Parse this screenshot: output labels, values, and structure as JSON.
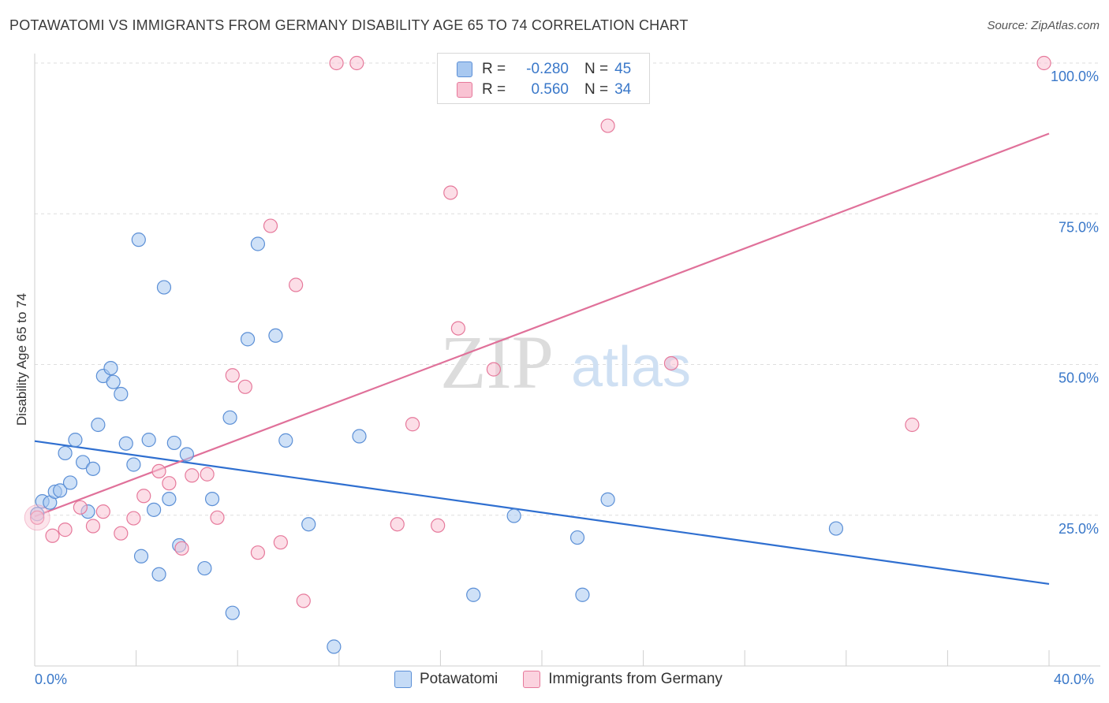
{
  "title": "POTAWATOMI VS IMMIGRANTS FROM GERMANY DISABILITY AGE 65 TO 74 CORRELATION CHART",
  "source": "Source: ZipAtlas.com",
  "watermark": {
    "zip": "ZIP",
    "atlas": "atlas"
  },
  "legend": {
    "rows": [
      {
        "r_label": "R =",
        "r_value": "-0.280",
        "n_label": "N =",
        "n_value": "45",
        "color": "#a8c8f0",
        "border": "#5b8fd6"
      },
      {
        "r_label": "R =",
        "r_value": "0.560",
        "n_label": "N =",
        "n_value": "34",
        "color": "#f9c3d3",
        "border": "#e6799b"
      }
    ]
  },
  "bottom_legend": [
    "Potawatomi",
    "Immigrants from Germany"
  ],
  "chart_data": {
    "type": "scatter",
    "title": "POTAWATOMI VS IMMIGRANTS FROM GERMANY DISABILITY AGE 65 TO 74 CORRELATION CHART",
    "xlabel": "",
    "ylabel": "Disability Age 65 to 74",
    "xlim": [
      0,
      40
    ],
    "ylim": [
      0,
      100
    ],
    "x_tick_labels": [
      "0.0%",
      "40.0%"
    ],
    "y_tick_labels": [
      "25.0%",
      "50.0%",
      "75.0%",
      "100.0%"
    ],
    "y_ticks": [
      25,
      50,
      75,
      100
    ],
    "x_ticks_minor": [
      0,
      4,
      8,
      12,
      16,
      20,
      24,
      28,
      32,
      36,
      40
    ],
    "grid": true,
    "series": [
      {
        "name": "Potawatomi",
        "color": "#a8c8f0",
        "stroke": "#5b8fd6",
        "line_color": "#2f6fd0",
        "trend": [
          [
            0,
            37.3
          ],
          [
            40,
            13.6
          ]
        ],
        "points": [
          [
            0.1,
            25.2
          ],
          [
            0.3,
            27.3
          ],
          [
            0.6,
            27.1
          ],
          [
            0.8,
            28.9
          ],
          [
            1.0,
            29.1
          ],
          [
            1.2,
            35.3
          ],
          [
            1.4,
            30.4
          ],
          [
            1.6,
            37.5
          ],
          [
            1.9,
            33.8
          ],
          [
            2.1,
            25.6
          ],
          [
            2.3,
            32.7
          ],
          [
            2.5,
            40.0
          ],
          [
            2.7,
            48.1
          ],
          [
            3.0,
            49.4
          ],
          [
            3.1,
            47.1
          ],
          [
            3.4,
            45.1
          ],
          [
            3.6,
            36.9
          ],
          [
            3.9,
            33.4
          ],
          [
            4.1,
            70.7
          ],
          [
            4.2,
            18.2
          ],
          [
            4.5,
            37.5
          ],
          [
            4.7,
            25.9
          ],
          [
            4.9,
            15.2
          ],
          [
            5.1,
            62.8
          ],
          [
            5.3,
            27.7
          ],
          [
            5.5,
            37.0
          ],
          [
            5.7,
            20.0
          ],
          [
            6.0,
            35.1
          ],
          [
            6.7,
            16.2
          ],
          [
            7.0,
            27.7
          ],
          [
            7.7,
            41.2
          ],
          [
            7.8,
            8.8
          ],
          [
            8.4,
            54.2
          ],
          [
            8.8,
            70.0
          ],
          [
            9.5,
            54.8
          ],
          [
            9.9,
            37.4
          ],
          [
            10.8,
            23.5
          ],
          [
            11.8,
            3.2
          ],
          [
            12.8,
            38.1
          ],
          [
            17.3,
            11.8
          ],
          [
            18.9,
            24.9
          ],
          [
            21.4,
            21.3
          ],
          [
            21.6,
            11.8
          ],
          [
            22.6,
            27.6
          ],
          [
            31.6,
            22.8
          ]
        ]
      },
      {
        "name": "Immigrants from Germany",
        "color": "#f9c3d3",
        "stroke": "#e6799b",
        "line_color": "#e0719a",
        "trend": [
          [
            0,
            24.8
          ],
          [
            40,
            88.3
          ]
        ],
        "points": [
          [
            0.1,
            24.6
          ],
          [
            0.7,
            21.6
          ],
          [
            1.2,
            22.6
          ],
          [
            1.8,
            26.3
          ],
          [
            2.3,
            23.2
          ],
          [
            2.7,
            25.6
          ],
          [
            3.4,
            22.0
          ],
          [
            3.9,
            24.5
          ],
          [
            4.3,
            28.2
          ],
          [
            4.9,
            32.3
          ],
          [
            5.3,
            30.3
          ],
          [
            5.8,
            19.5
          ],
          [
            6.2,
            31.6
          ],
          [
            6.8,
            31.8
          ],
          [
            7.2,
            24.6
          ],
          [
            7.8,
            48.2
          ],
          [
            8.3,
            46.3
          ],
          [
            8.8,
            18.8
          ],
          [
            9.3,
            73.0
          ],
          [
            9.7,
            20.5
          ],
          [
            10.3,
            63.2
          ],
          [
            10.6,
            10.8
          ],
          [
            11.9,
            100
          ],
          [
            12.7,
            100
          ],
          [
            14.3,
            23.5
          ],
          [
            14.9,
            40.1
          ],
          [
            15.9,
            23.3
          ],
          [
            16.4,
            78.5
          ],
          [
            16.7,
            56.0
          ],
          [
            18.1,
            49.2
          ],
          [
            22.6,
            89.6
          ],
          [
            25.1,
            50.2
          ],
          [
            34.6,
            40.0
          ],
          [
            39.8,
            100
          ]
        ]
      }
    ]
  }
}
